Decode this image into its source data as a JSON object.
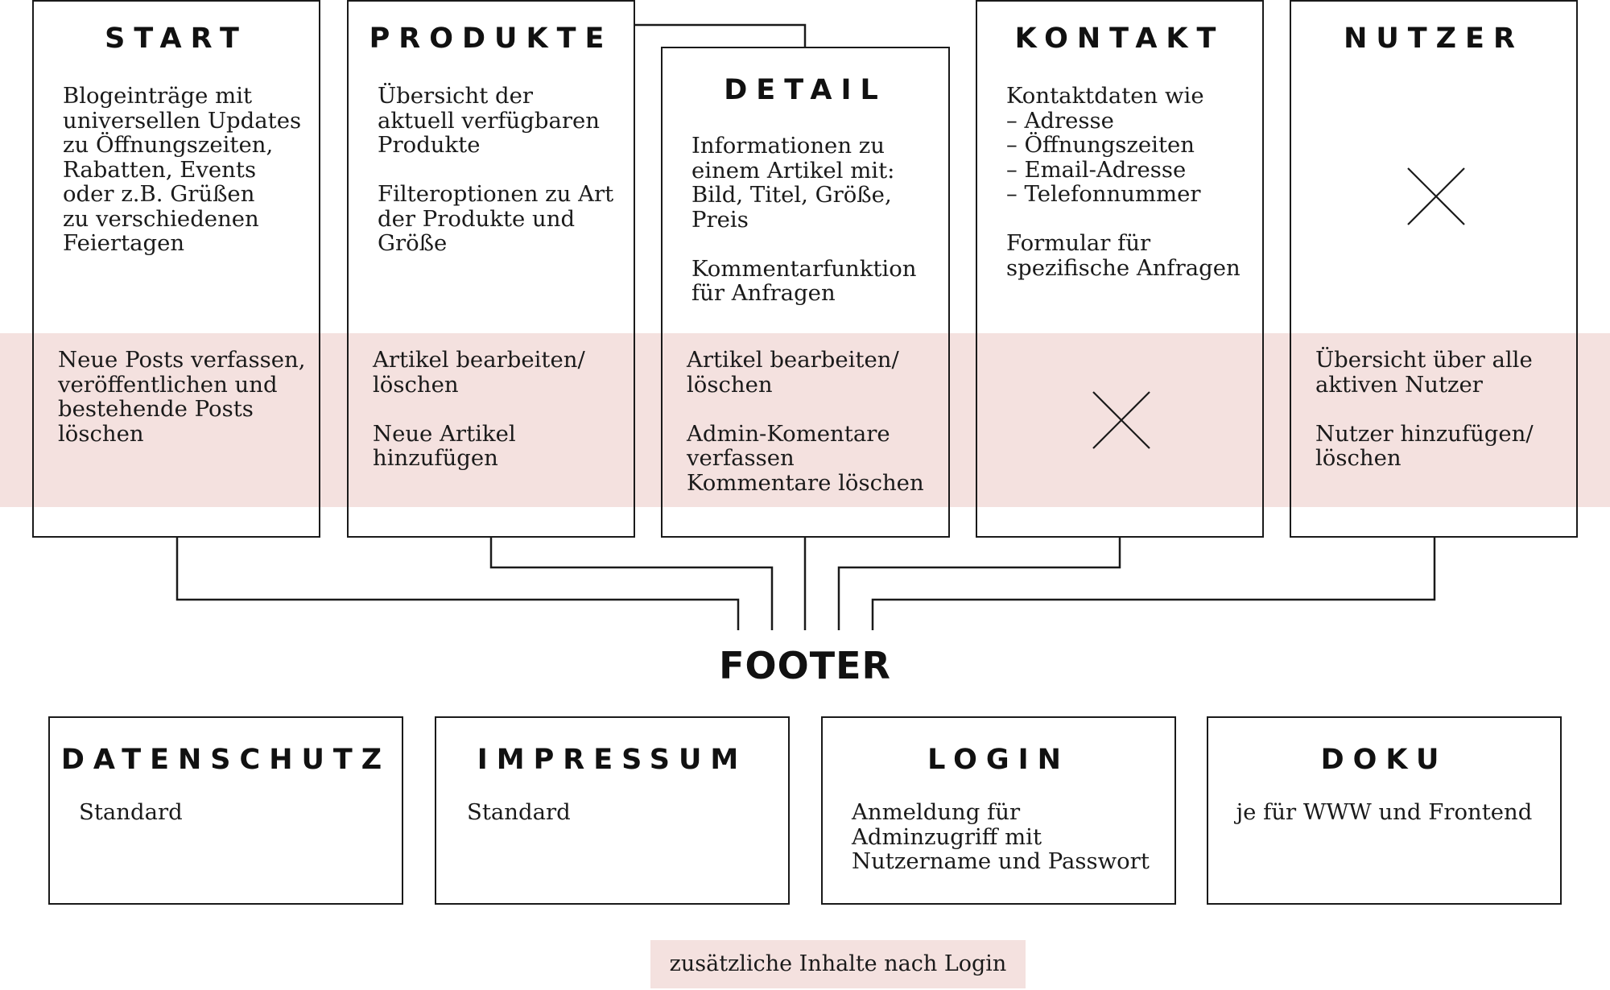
{
  "top_cards": [
    {
      "title": "START",
      "public_text": "Blogeinträge mit\nuniversellen Updates\nzu Öffnungszeiten,\nRabatten, Events\noder z.B. Grüßen\nzu verschiedenen\nFeiertagen",
      "admin_text": "Neue Posts verfassen,\nveröffentlichen und\nbestehende Posts\nlöschen"
    },
    {
      "title": "PRODUKTE",
      "public_text": "Übersicht der\naktuell verfügbaren\nProdukte\n\nFilteroptionen zu Art\nder Produkte und\nGröße",
      "admin_text": "Artikel bearbeiten/\nlöschen\n\nNeue Artikel\nhinzufügen"
    },
    {
      "title": "DETAIL",
      "public_text": "Informationen zu\neinem Artikel mit:\nBild, Titel, Größe,\nPreis\n\nKommentarfunktion\nfür Anfragen",
      "admin_text": "Artikel bearbeiten/\nlöschen\n\nAdmin-Komentare\nverfassen\nKommentare löschen"
    },
    {
      "title": "KONTAKT",
      "public_text": "Kontaktdaten wie\n– Adresse\n– Öffnungszeiten\n– Email-Adresse\n– Telefonnummer\n\nFormular für\nspezifische Anfragen",
      "admin_text": ""
    },
    {
      "title": "NUTZER",
      "public_text": "",
      "admin_text": "Übersicht über alle\naktiven Nutzer\n\nNutzer hinzufügen/\nlöschen"
    }
  ],
  "footer_label": "FOOTER",
  "footer_cards": [
    {
      "title": "DATENSCHUTZ",
      "text": "Standard"
    },
    {
      "title": "IMPRESSUM",
      "text": "Standard"
    },
    {
      "title": "LOGIN",
      "text": "Anmeldung für\nAdminzugriff mit\nNutzername und Passwort"
    },
    {
      "title": "DOKU",
      "text": "je für WWW und Frontend"
    }
  ],
  "legend_text": "zusätzliche Inhalte nach Login",
  "colors": {
    "admin_band": "#f4e1df",
    "stroke": "#1a1a1a"
  }
}
